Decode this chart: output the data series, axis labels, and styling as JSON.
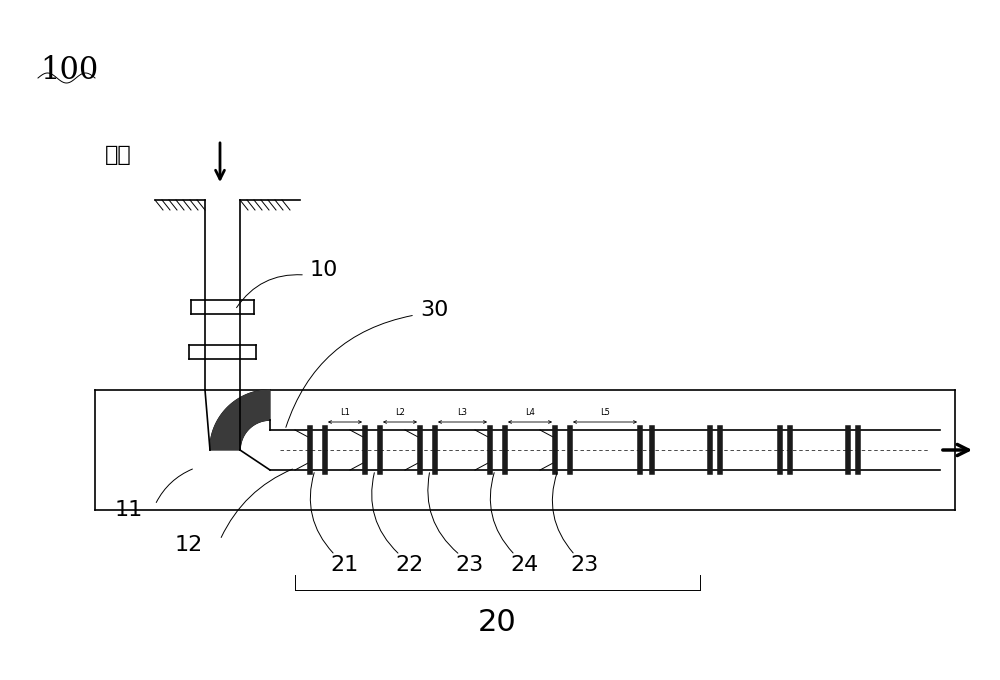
{
  "bg_color": "#ffffff",
  "line_color": "#000000",
  "label_100": "100",
  "label_dizhi": "地面",
  "label_10": "10",
  "label_30": "30",
  "label_11": "11",
  "label_12": "12",
  "label_20": "20",
  "label_21": "21",
  "label_22": "22",
  "label_23a": "23",
  "label_24": "24",
  "label_23b": "23",
  "label_L1": "L1",
  "label_L2": "L2",
  "label_L3": "L3",
  "label_L4": "L4",
  "label_L5": "L5",
  "font_size_xl": 22,
  "font_size_large": 16,
  "font_size_medium": 13,
  "font_size_small": 8,
  "font_size_tiny": 6
}
